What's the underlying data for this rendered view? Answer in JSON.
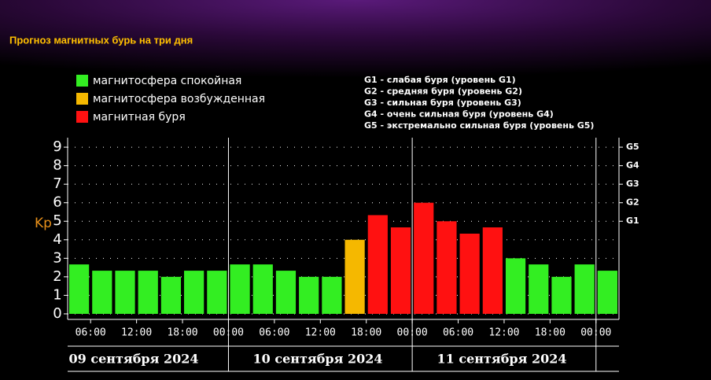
{
  "chart_data": {
    "type": "bar",
    "title": "Прогноз магнитных бурь на три дня",
    "y_label": "Kp",
    "legend": [
      {
        "name": "магнитосфера спокойная",
        "color": "#33ee22"
      },
      {
        "name": "магнитосфера возбужденная",
        "color": "#f5b800"
      },
      {
        "name": "магнитная буря",
        "color": "#ff1111"
      }
    ],
    "notes": [
      "G1 - слабая буря (уровень G1)",
      "G2 - средняя буря (уровень G2)",
      "G3 - сильная буря (уровень G3)",
      "G4 - очень сильная буря (уровень G4)",
      "G5 - экстремально сильная буря (уровень G5)"
    ],
    "values": [
      2.67,
      2.33,
      2.33,
      2.33,
      2.0,
      2.33,
      2.33,
      2.67,
      2.67,
      2.33,
      2.0,
      2.0,
      4.0,
      5.33,
      4.67,
      6.0,
      5.0,
      4.33,
      4.67,
      3.0,
      2.67,
      2.0,
      2.67,
      2.33
    ],
    "bar_colors": [
      "#33ee22",
      "#33ee22",
      "#33ee22",
      "#33ee22",
      "#33ee22",
      "#33ee22",
      "#33ee22",
      "#33ee22",
      "#33ee22",
      "#33ee22",
      "#33ee22",
      "#33ee22",
      "#f5b800",
      "#ff1111",
      "#ff1111",
      "#ff1111",
      "#ff1111",
      "#ff1111",
      "#ff1111",
      "#33ee22",
      "#33ee22",
      "#33ee22",
      "#33ee22",
      "#33ee22"
    ],
    "xtick_labels": [
      "06:00",
      "12:00",
      "18:00",
      "00:00",
      "06:00",
      "12:00",
      "18:00",
      "00:00",
      "06:00",
      "12:00",
      "18:00",
      "00:00"
    ],
    "date_labels": [
      "09 сентября 2024",
      "10 сентября 2024",
      "11 сентября 2024"
    ],
    "ylim": [
      -0.3,
      9.3
    ],
    "yticks": [
      0,
      1,
      2,
      3,
      4,
      5,
      6,
      7,
      8,
      9
    ],
    "y2lim": [
      -0.3,
      9.3
    ],
    "y2ticks": [
      {
        "value": 5,
        "label": "G1"
      },
      {
        "value": 6,
        "label": "G2"
      },
      {
        "value": 7,
        "label": "G3"
      },
      {
        "value": 8,
        "label": "G4"
      },
      {
        "value": 9,
        "label": "G5"
      }
    ],
    "grid": true
  }
}
